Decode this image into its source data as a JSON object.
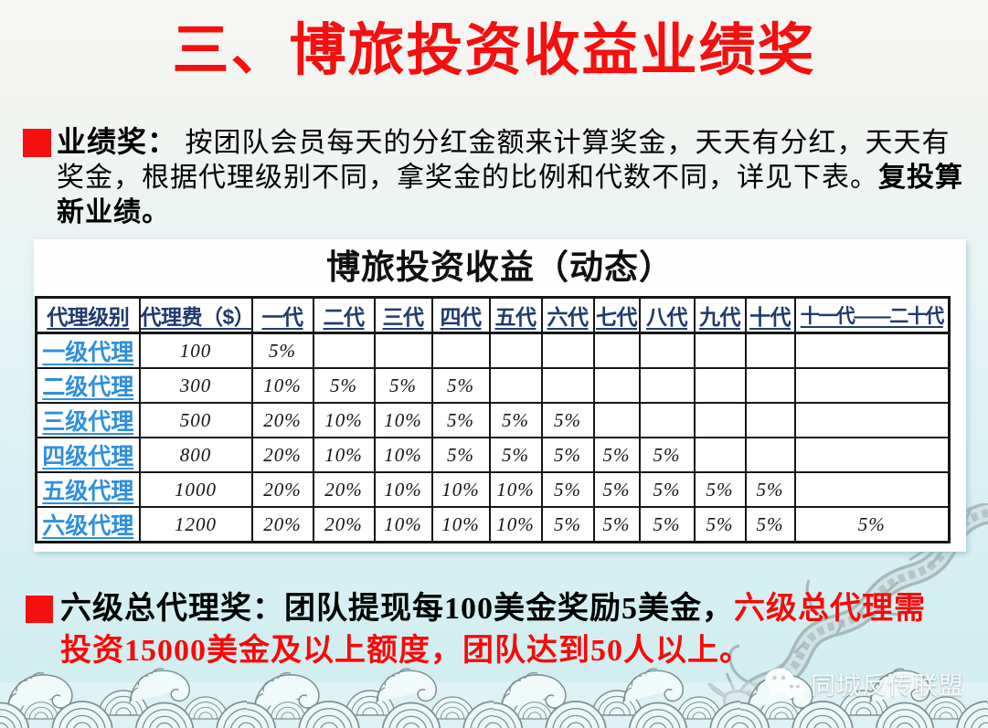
{
  "title": "三、博旅投资收益业绩奖",
  "intro": {
    "label": "业绩奖：",
    "body": " 按团队会员每天的分红金额来计算奖金，天天有分红，天天有奖金，根据代理级别不同，拿奖金的比例和代数不同，详见下表。",
    "bold_tail": "复投算新业绩。"
  },
  "table": {
    "title": "博旅投资收益（动态）",
    "headers": [
      "代理级别",
      "代理费（$）",
      "一代",
      "二代",
      "三代",
      "四代",
      "五代",
      "六代",
      "七代",
      "八代",
      "九代",
      "十代",
      "十一代——二十代"
    ],
    "rows": [
      {
        "level": "一级代理",
        "fee": "100",
        "gens": [
          "5%",
          "",
          "",
          "",
          "",
          "",
          "",
          "",
          "",
          "",
          ""
        ]
      },
      {
        "level": "二级代理",
        "fee": "300",
        "gens": [
          "10%",
          "5%",
          "5%",
          "5%",
          "",
          "",
          "",
          "",
          "",
          "",
          ""
        ]
      },
      {
        "level": "三级代理",
        "fee": "500",
        "gens": [
          "20%",
          "10%",
          "10%",
          "5%",
          "5%",
          "5%",
          "",
          "",
          "",
          "",
          ""
        ]
      },
      {
        "level": "四级代理",
        "fee": "800",
        "gens": [
          "20%",
          "10%",
          "10%",
          "5%",
          "5%",
          "5%",
          "5%",
          "5%",
          "",
          "",
          ""
        ]
      },
      {
        "level": "五级代理",
        "fee": "1000",
        "gens": [
          "20%",
          "20%",
          "10%",
          "10%",
          "10%",
          "5%",
          "5%",
          "5%",
          "5%",
          "5%",
          ""
        ]
      },
      {
        "level": "六级代理",
        "fee": "1200",
        "gens": [
          "20%",
          "20%",
          "10%",
          "10%",
          "10%",
          "5%",
          "5%",
          "5%",
          "5%",
          "5%",
          "5%"
        ]
      }
    ]
  },
  "footer": {
    "black_part": "六级总代理奖：团队提现每100美金奖励5美金，",
    "red_part": "六级总代理需投资15000美金及以上额度，团队达到50人以上。"
  },
  "watermark": {
    "text": "同城反传联盟",
    "icon": "wechat-chat-bubbles-icon"
  },
  "icons": {
    "intro_bullet": "red-square-bullet",
    "footer_bullet": "red-square-bullet",
    "background_art": [
      "dragon-art",
      "wave-pattern"
    ]
  },
  "colors": {
    "title_red": "#f50f0f",
    "footer_red": "#fb0808",
    "header_navy": "#1f3a6e",
    "row_label_blue": "#2e8fe0",
    "bg_top": "#f7f6f4",
    "bg_bottom": "#cfedf0",
    "table_bg": "#ffffff",
    "border_black": "#161616",
    "art_gray": "#7e9093",
    "watermark_white": "#f7fafa"
  }
}
